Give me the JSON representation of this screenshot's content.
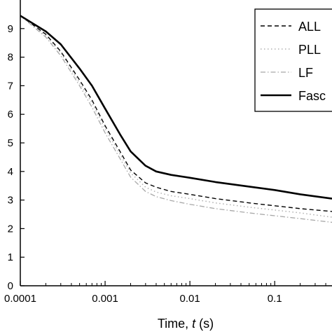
{
  "chart_data": {
    "type": "line",
    "xscale": "log",
    "xlim": [
      0.0001,
      0.474
    ],
    "ylim": [
      0,
      10
    ],
    "grid": false,
    "legend_position": "top-right",
    "xlabel": {
      "prefix": "Time, ",
      "var": "t",
      "suffix": " (s)"
    },
    "ylabel": "",
    "x_ticks": [
      {
        "value": 0.0001,
        "label": "0.0001"
      },
      {
        "value": 0.001,
        "label": "0.001"
      },
      {
        "value": 0.01,
        "label": "0.01"
      },
      {
        "value": 0.1,
        "label": "0.1"
      }
    ],
    "y_ticks": [
      {
        "value": 0,
        "label": "0"
      },
      {
        "value": 1,
        "label": "1"
      },
      {
        "value": 2,
        "label": "2"
      },
      {
        "value": 3,
        "label": "3"
      },
      {
        "value": 4,
        "label": "4"
      },
      {
        "value": 5,
        "label": "5"
      },
      {
        "value": 6,
        "label": "6"
      },
      {
        "value": 7,
        "label": "7"
      },
      {
        "value": 8,
        "label": "8"
      },
      {
        "value": 9,
        "label": "9"
      }
    ],
    "series": [
      {
        "name": "ALL",
        "color": "#000000",
        "dash": "dashed",
        "points": [
          [
            0.0001,
            9.45
          ],
          [
            0.0002,
            8.8
          ],
          [
            0.0003,
            8.2
          ],
          [
            0.0005,
            7.2
          ],
          [
            0.0007,
            6.5
          ],
          [
            0.001,
            5.6
          ],
          [
            0.0015,
            4.7
          ],
          [
            0.002,
            4.05
          ],
          [
            0.003,
            3.6
          ],
          [
            0.004,
            3.45
          ],
          [
            0.006,
            3.3
          ],
          [
            0.01,
            3.2
          ],
          [
            0.02,
            3.05
          ],
          [
            0.05,
            2.9
          ],
          [
            0.1,
            2.8
          ],
          [
            0.2,
            2.7
          ],
          [
            0.474,
            2.6
          ]
        ]
      },
      {
        "name": "PLL",
        "color": "#b0b0b0",
        "dash": "dotted",
        "points": [
          [
            0.0001,
            9.45
          ],
          [
            0.0002,
            8.75
          ],
          [
            0.0003,
            8.15
          ],
          [
            0.0005,
            7.1
          ],
          [
            0.0007,
            6.4
          ],
          [
            0.001,
            5.5
          ],
          [
            0.0015,
            4.6
          ],
          [
            0.002,
            3.95
          ],
          [
            0.003,
            3.45
          ],
          [
            0.004,
            3.28
          ],
          [
            0.006,
            3.15
          ],
          [
            0.01,
            3.05
          ],
          [
            0.02,
            2.9
          ],
          [
            0.05,
            2.75
          ],
          [
            0.1,
            2.65
          ],
          [
            0.2,
            2.55
          ],
          [
            0.474,
            2.4
          ]
        ]
      },
      {
        "name": "LF",
        "color": "#a8a8a8",
        "dash": "dashdot",
        "points": [
          [
            0.0001,
            9.45
          ],
          [
            0.0002,
            8.7
          ],
          [
            0.0003,
            8.05
          ],
          [
            0.0005,
            7.0
          ],
          [
            0.0007,
            6.25
          ],
          [
            0.001,
            5.35
          ],
          [
            0.0015,
            4.45
          ],
          [
            0.002,
            3.8
          ],
          [
            0.003,
            3.3
          ],
          [
            0.004,
            3.12
          ],
          [
            0.006,
            2.98
          ],
          [
            0.01,
            2.85
          ],
          [
            0.02,
            2.7
          ],
          [
            0.05,
            2.55
          ],
          [
            0.1,
            2.45
          ],
          [
            0.2,
            2.35
          ],
          [
            0.474,
            2.22
          ]
        ]
      },
      {
        "name": "Fascicle",
        "legend_label": "Fasc",
        "color": "#000000",
        "dash": "solid",
        "points": [
          [
            0.0001,
            9.45
          ],
          [
            0.0002,
            8.9
          ],
          [
            0.0003,
            8.45
          ],
          [
            0.0005,
            7.6
          ],
          [
            0.0007,
            7.0
          ],
          [
            0.001,
            6.2
          ],
          [
            0.0015,
            5.3
          ],
          [
            0.002,
            4.7
          ],
          [
            0.003,
            4.2
          ],
          [
            0.004,
            4.0
          ],
          [
            0.006,
            3.88
          ],
          [
            0.01,
            3.78
          ],
          [
            0.02,
            3.63
          ],
          [
            0.05,
            3.47
          ],
          [
            0.1,
            3.35
          ],
          [
            0.2,
            3.2
          ],
          [
            0.474,
            3.05
          ]
        ]
      }
    ]
  }
}
